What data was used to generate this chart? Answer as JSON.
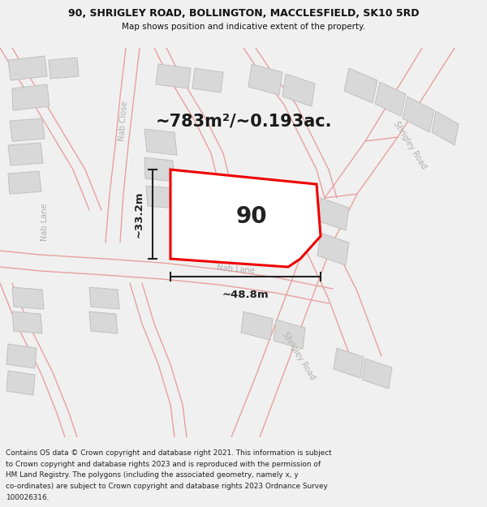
{
  "title": "90, SHRIGLEY ROAD, BOLLINGTON, MACCLESFIELD, SK10 5RD",
  "subtitle": "Map shows position and indicative extent of the property.",
  "area_text": "~783m²/~0.193ac.",
  "property_number": "90",
  "width_label": "~48.8m",
  "height_label": "~33.2m",
  "footer_lines": [
    "Contains OS data © Crown copyright and database right 2021. This information is subject",
    "to Crown copyright and database rights 2023 and is reproduced with the permission of",
    "HM Land Registry. The polygons (including the associated geometry, namely x, y",
    "co-ordinates) are subject to Crown copyright and database rights 2023 Ordnance Survey",
    "100026316."
  ],
  "bg_color": "#f0f0f0",
  "map_bg": "#ffffff",
  "road_line_color": "#e8a0a0",
  "building_fill": "#d8d8d8",
  "building_edge": "#c0c0c0",
  "property_fill": "#ffffff",
  "property_outline": "#ee0000",
  "label_color": "#b0b0b0",
  "dimension_color": "#222222",
  "title_color": "#111111",
  "property_lw": 2.2,
  "road_lw": 1.0
}
